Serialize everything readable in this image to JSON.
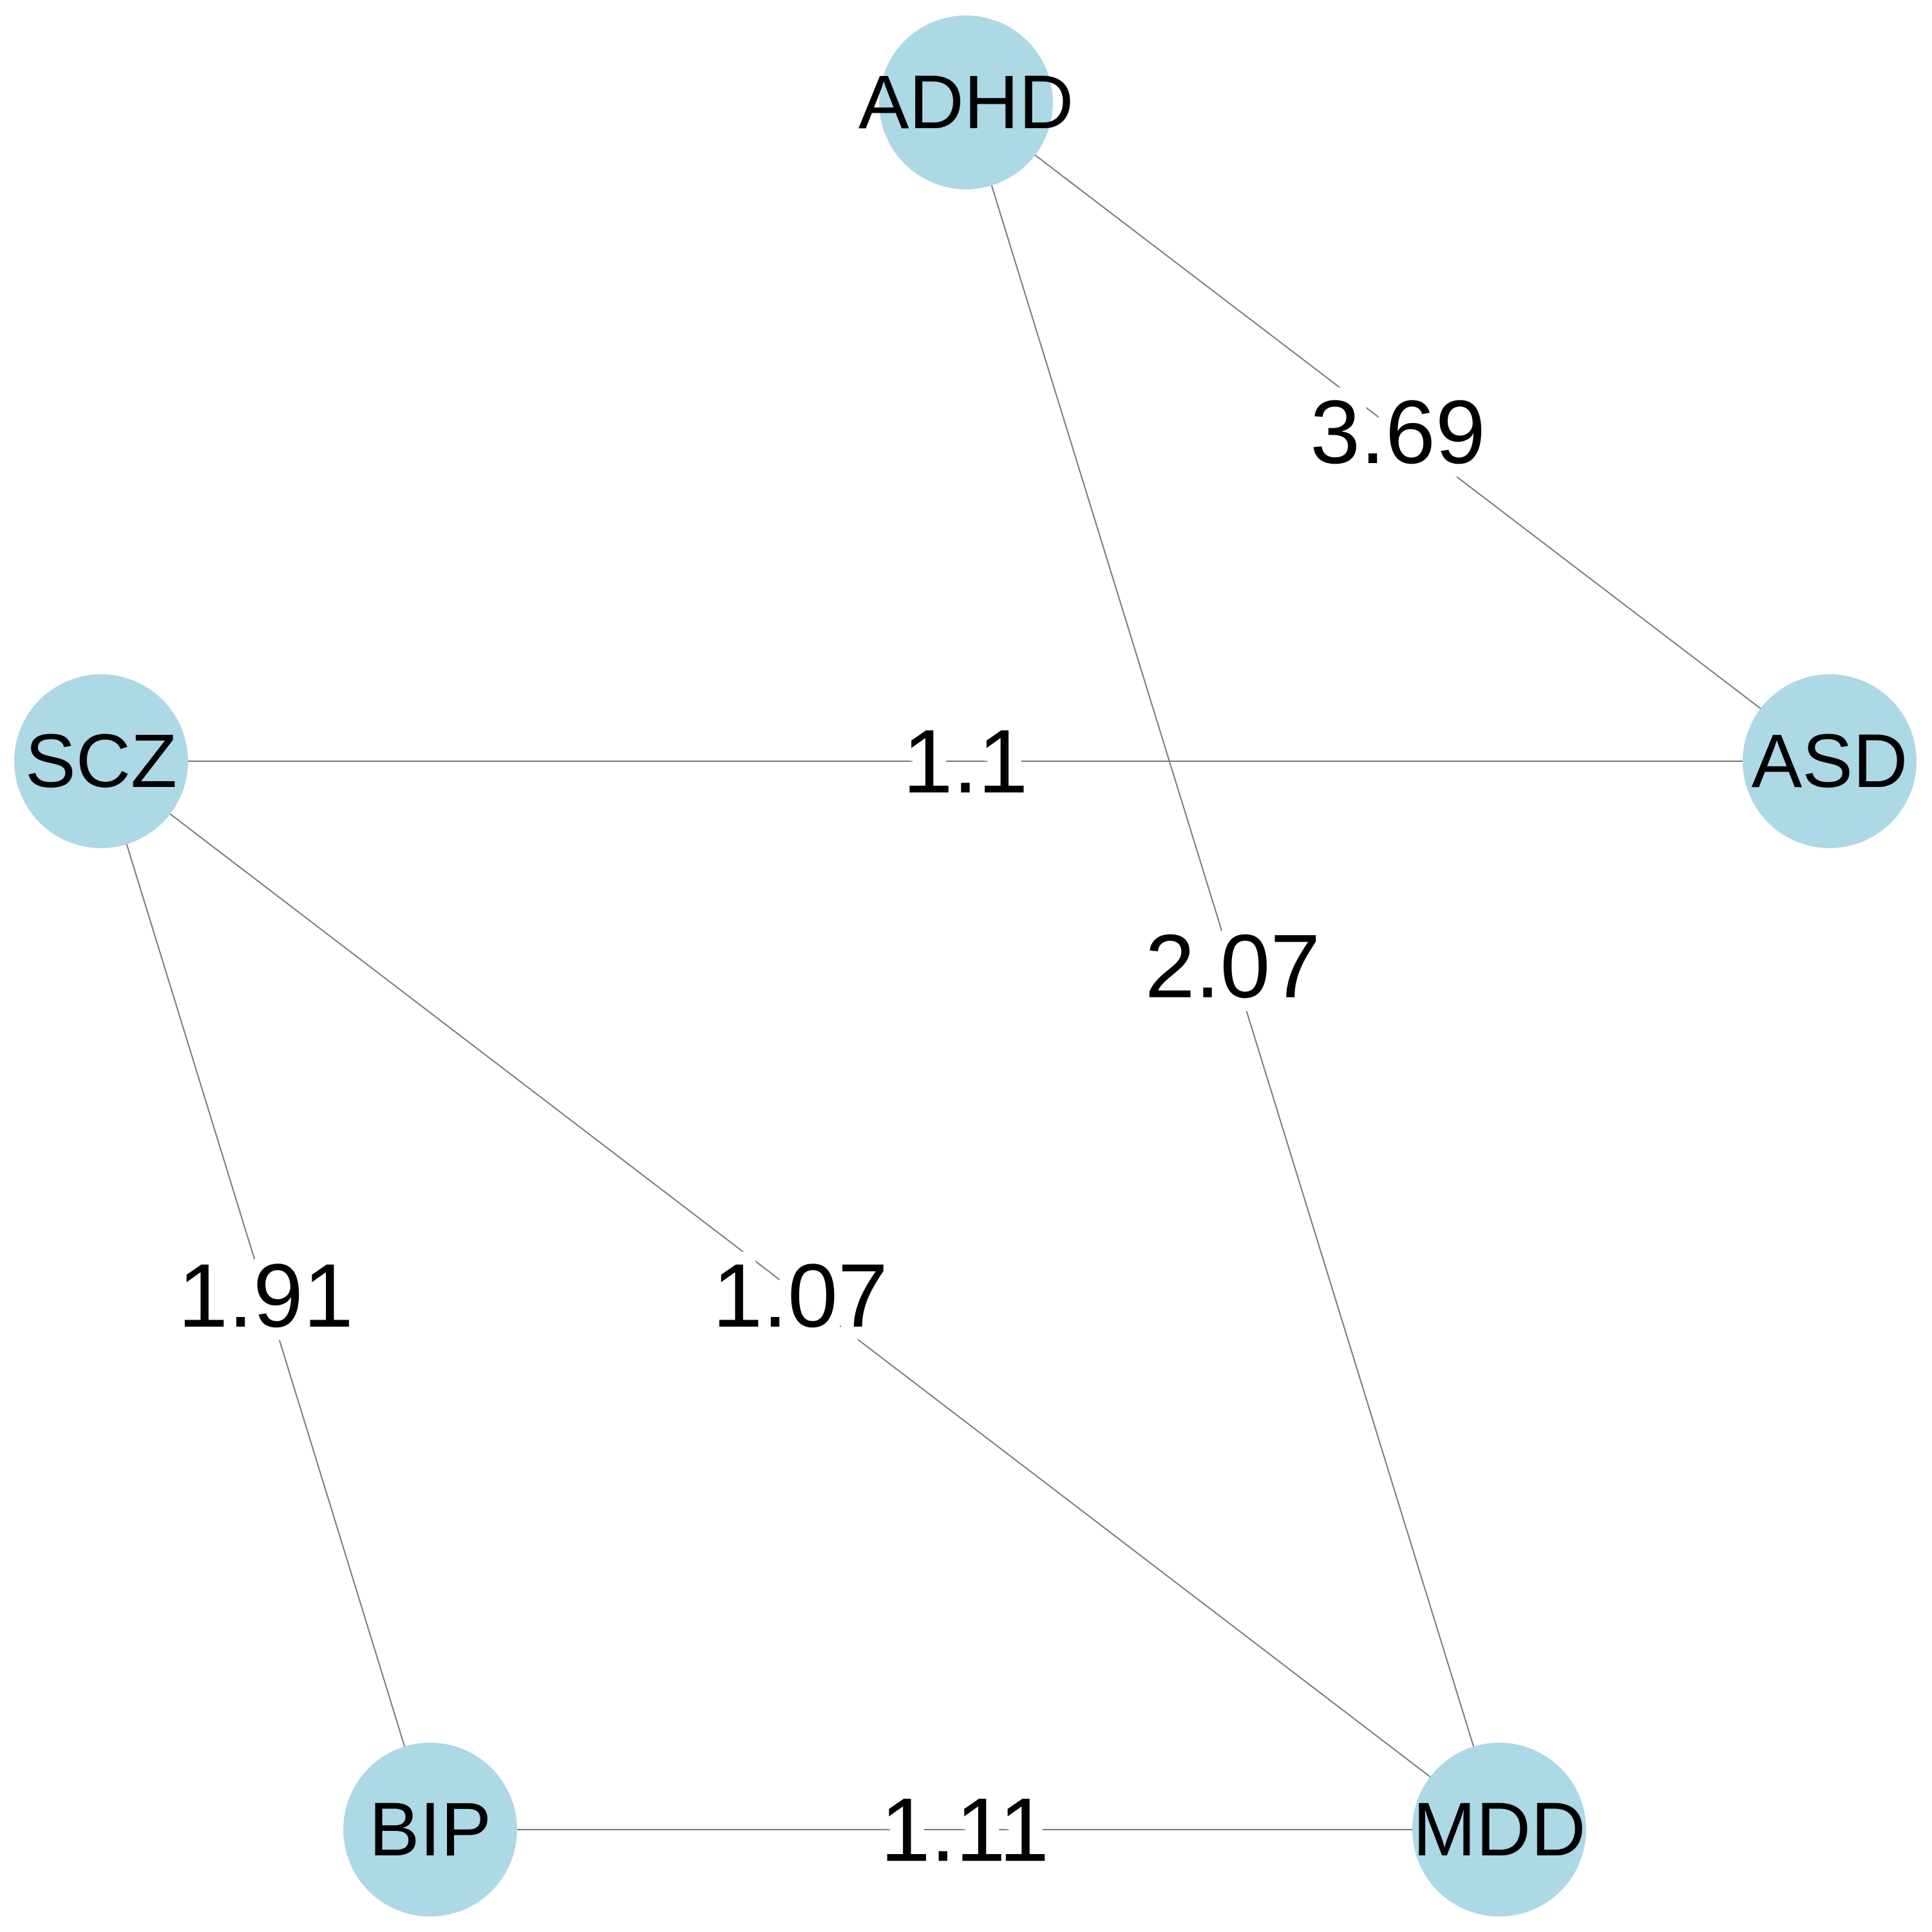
{
  "nodes": [
    {
      "label": "ADHD"
    },
    {
      "label": "ASD"
    },
    {
      "label": "SCZ"
    },
    {
      "label": "BIP"
    },
    {
      "label": "MDD"
    }
  ],
  "edges": [
    {
      "weight": 3.69
    },
    {
      "weight": 2.07
    },
    {
      "weight": 1.1
    },
    {
      "weight": 1.91
    },
    {
      "weight": 1.07
    },
    {
      "weight": 1.11
    }
  ]
}
